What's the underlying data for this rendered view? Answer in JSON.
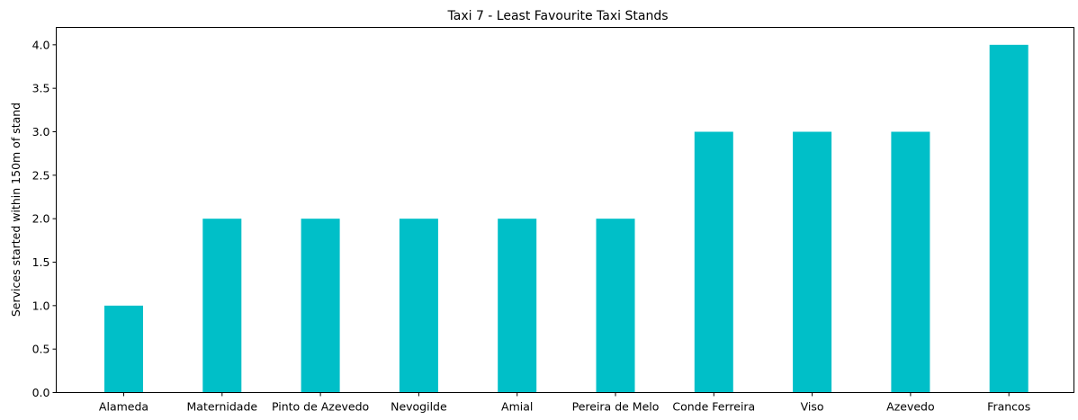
{
  "chart_data": {
    "type": "bar",
    "title": "Taxi 7 - Least Favourite Taxi Stands",
    "xlabel": "",
    "ylabel": "Services started within 150m of stand",
    "categories": [
      "Alameda",
      "Maternidade",
      "Pinto de Azevedo",
      "Nevogilde",
      "Amial",
      "Pereira de Melo",
      "Conde Ferreira",
      "Viso",
      "Azevedo",
      "Francos"
    ],
    "values": [
      1,
      2,
      2,
      2,
      2,
      2,
      3,
      3,
      3,
      4
    ],
    "ylim": [
      0,
      4.2
    ],
    "yticks": [
      "0.0",
      "0.5",
      "1.0",
      "1.5",
      "2.0",
      "2.5",
      "3.0",
      "3.5",
      "4.0"
    ],
    "grid": false,
    "bar_color": "#00BFC8"
  }
}
